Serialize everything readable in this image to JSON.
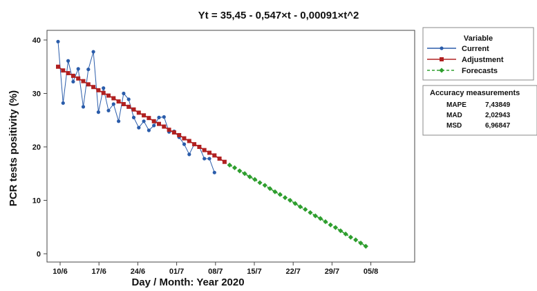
{
  "chart_data": {
    "type": "line",
    "title": "Yt = 35,45 - 0,547×t - 0,00091×t^2",
    "xlabel": "Day / Month: Year 2020",
    "ylabel": "PCR tests positivity (%)",
    "x_ticks": [
      "10/6",
      "17/6",
      "24/6",
      "01/7",
      "08/7",
      "15/7",
      "22/7",
      "29/7",
      "05/8"
    ],
    "ylim": [
      0,
      40
    ],
    "y_ticks": [
      "0",
      "10",
      "20",
      "30",
      "40"
    ],
    "series": [
      {
        "name": "Current",
        "color": "#2a5caa",
        "marker": "circle",
        "values": [
          39.7,
          28.2,
          36.1,
          32.2,
          34.6,
          27.5,
          34.5,
          37.8,
          26.5,
          31.0,
          26.8,
          28.0,
          24.8,
          30.0,
          28.9,
          25.5,
          23.6,
          24.8,
          23.1,
          24.0,
          25.5,
          25.6,
          22.8,
          22.9,
          21.8,
          20.5,
          18.6,
          20.5,
          20.0,
          17.8,
          17.8,
          15.2
        ]
      },
      {
        "name": "Adjustment",
        "color": "#b02020",
        "marker": "square",
        "values": [
          35.0,
          34.3,
          33.8,
          33.3,
          32.8,
          32.3,
          31.7,
          31.2,
          30.6,
          30.1,
          29.6,
          29.1,
          28.5,
          28.0,
          27.5,
          27.0,
          26.4,
          25.9,
          25.4,
          24.8,
          24.3,
          23.8,
          23.2,
          22.7,
          22.2,
          21.6,
          21.1,
          20.5,
          20.0,
          19.4,
          18.9,
          18.4,
          17.8,
          17.2
        ]
      },
      {
        "name": "Forecasts",
        "color": "#2e9e2e",
        "marker": "diamond",
        "values": [
          16.6,
          16.1,
          15.5,
          15.0,
          14.4,
          13.9,
          13.3,
          12.8,
          12.2,
          11.6,
          11.1,
          10.5,
          10.0,
          9.4,
          8.8,
          8.3,
          7.7,
          7.1,
          6.6,
          6.0,
          5.4,
          4.9,
          4.3,
          3.7,
          3.1,
          2.6,
          2.0,
          1.4
        ]
      }
    ],
    "legend_title": "Variable",
    "legend_position": "top-right",
    "accuracy": {
      "title": "Accuracy measurements",
      "rows": [
        {
          "label": "MAPE",
          "value": "7,43849"
        },
        {
          "label": "MAD",
          "value": "2,02943"
        },
        {
          "label": "MSD",
          "value": "6,96847"
        }
      ]
    }
  }
}
